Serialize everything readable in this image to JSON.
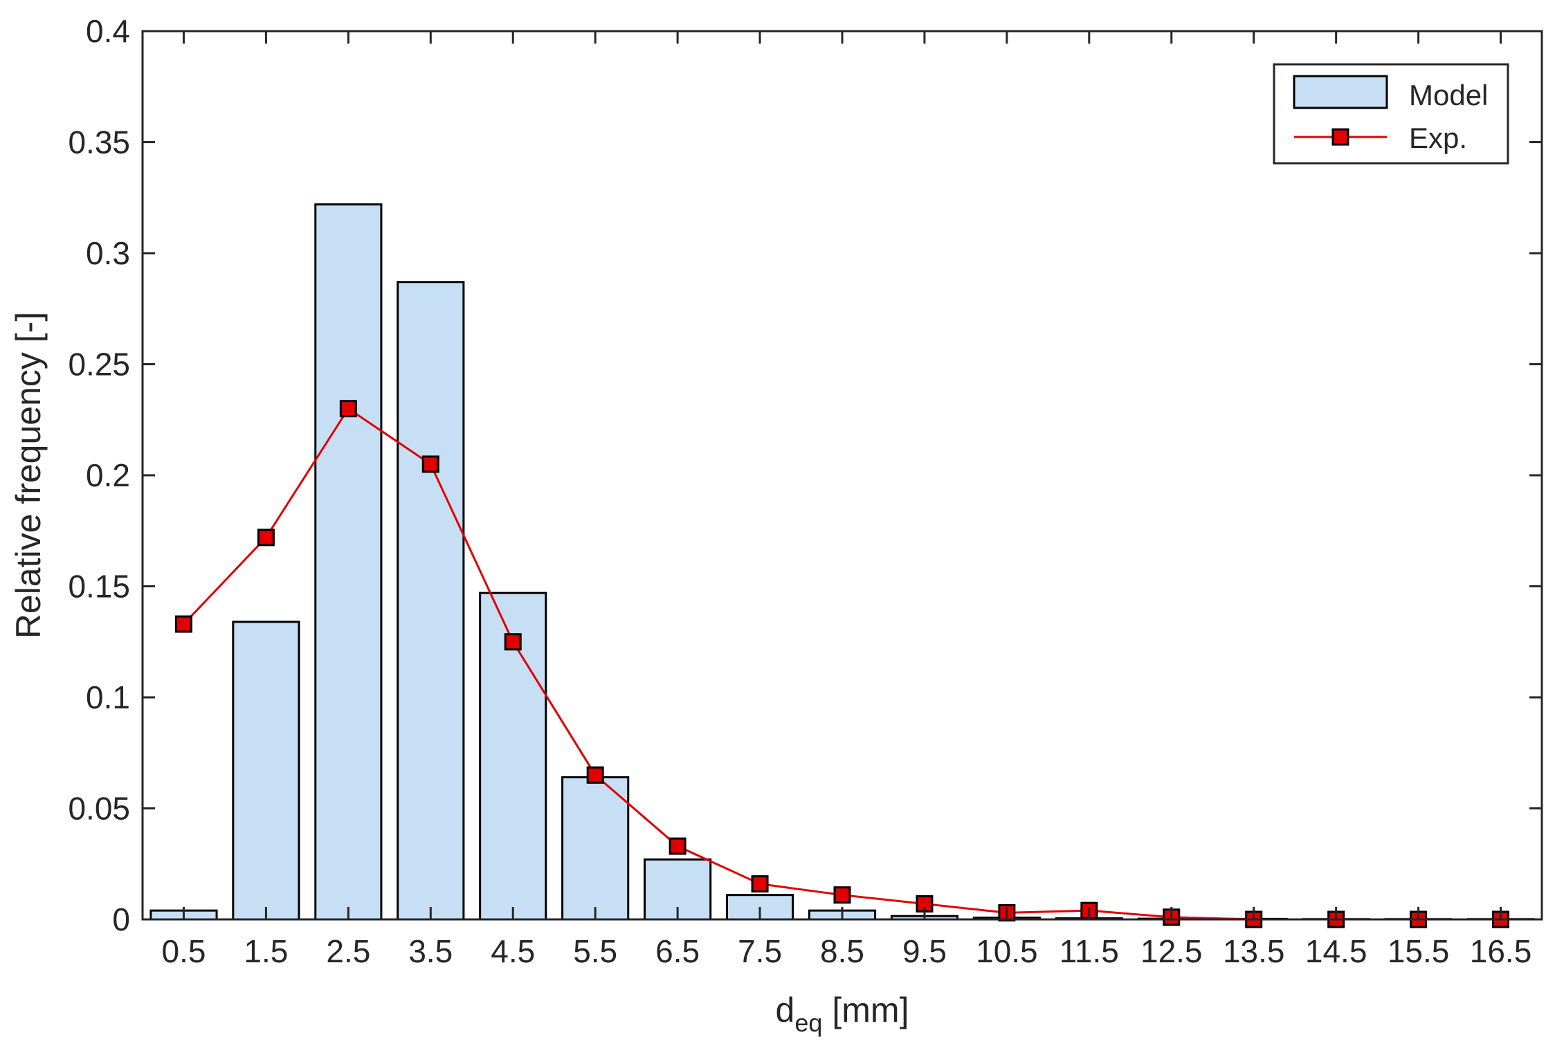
{
  "chart_data": {
    "type": "bar",
    "xlabel_main": "d",
    "xlabel_sub": "eq",
    "xlabel_unit": "[mm]",
    "ylabel": "Relative frequency [-]",
    "ylim": [
      0,
      0.4
    ],
    "yticks": [
      0,
      0.05,
      0.1,
      0.15,
      0.2,
      0.25,
      0.3,
      0.35,
      0.4
    ],
    "ytick_labels": [
      "0",
      "0.05",
      "0.1",
      "0.15",
      "0.2",
      "0.25",
      "0.3",
      "0.35",
      "0.4"
    ],
    "categories": [
      "0.5",
      "1.5",
      "2.5",
      "3.5",
      "4.5",
      "5.5",
      "6.5",
      "7.5",
      "8.5",
      "9.5",
      "10.5",
      "11.5",
      "12.5",
      "13.5",
      "14.5",
      "15.5",
      "16.5"
    ],
    "legend_position": "top-right",
    "grid": false,
    "series": [
      {
        "name": "Model",
        "kind": "bar",
        "color": "#c6dff5",
        "edge_color": "#000000",
        "values": [
          0.004,
          0.134,
          0.322,
          0.287,
          0.147,
          0.064,
          0.027,
          0.011,
          0.004,
          0.0015,
          0.0008,
          0.0005,
          0.0003,
          0.0002,
          0.0001,
          0.0001,
          0.0001
        ]
      },
      {
        "name": "Exp.",
        "kind": "line",
        "marker": "square",
        "color": "#e00000",
        "values": [
          0.133,
          0.172,
          0.23,
          0.205,
          0.125,
          0.065,
          0.033,
          0.016,
          0.011,
          0.007,
          0.003,
          0.004,
          0.001,
          0.0,
          0.0,
          0.0,
          0.0
        ]
      }
    ]
  }
}
